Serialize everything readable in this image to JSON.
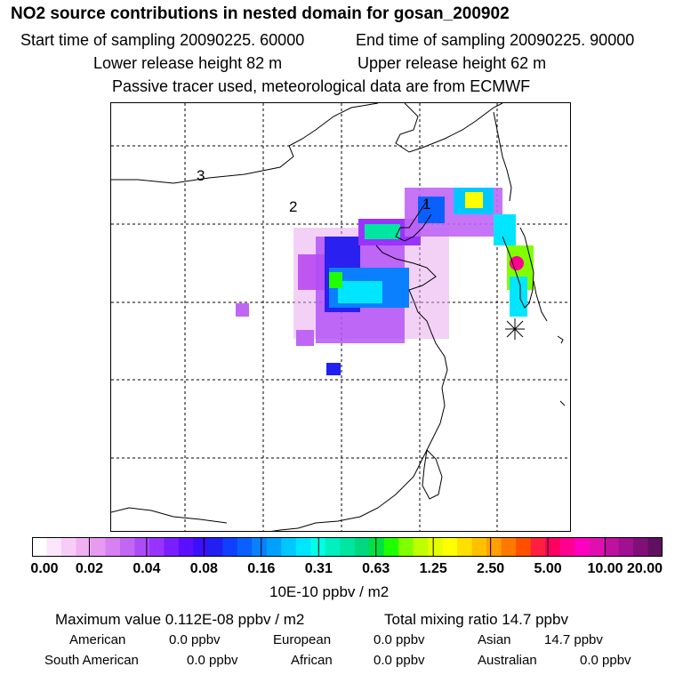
{
  "header": {
    "title": "NO2 source contributions in nested domain for gosan_200902",
    "start": "Start time of sampling 20090225. 60000",
    "end": "End time of sampling 20090225. 90000",
    "lower": "Lower release height   82 m",
    "upper": "Upper release height   62 m",
    "note": "Passive tracer used, meteorological data are from ECMWF"
  },
  "chart_data": {
    "type": "heatmap",
    "title": "NO2 source contributions in nested domain for gosan_200902",
    "colorbar": {
      "label": "10E-10 ppbv / m2",
      "ticks": [
        "0.00",
        "0.02",
        "0.04",
        "0.08",
        "0.16",
        "0.31",
        "0.63",
        "1.25",
        "2.50",
        "5.00",
        "10.00",
        "20.00"
      ],
      "colors": [
        "#ffffff",
        "#fbe6fb",
        "#f7ccf7",
        "#f0b0f2",
        "#e69af0",
        "#d780f2",
        "#c266f5",
        "#ac4cf7",
        "#9933ff",
        "#7a1fff",
        "#5a10ff",
        "#3a10ff",
        "#2020f2",
        "#1040ff",
        "#0a60ff",
        "#0a80ff",
        "#00a0ff",
        "#00c8ff",
        "#00e6ff",
        "#00ffe6",
        "#00f0c0",
        "#00e6a0",
        "#00d880",
        "#00e040",
        "#20ff00",
        "#80ff00",
        "#c0ff00",
        "#e6ff00",
        "#ffff00",
        "#ffe000",
        "#ffc000",
        "#ffa000",
        "#ff7800",
        "#ff5000",
        "#ff2040",
        "#ff0060",
        "#ff0090",
        "#ff00c0",
        "#e010b0",
        "#c010a0",
        "#a01090",
        "#801078",
        "#601060"
      ]
    },
    "region_labels": [
      "1",
      "2",
      "3"
    ],
    "receptor": "gosan (marked by star)",
    "grid": true
  },
  "stats": {
    "max": "Maximum value  0.112E-08 ppbv / m2",
    "total": "Total mixing ratio       14.7 ppbv",
    "american_label": "American",
    "american_val": "0.0 ppbv",
    "european_label": "European",
    "european_val": "0.0 ppbv",
    "asian_label": "Asian",
    "asian_val": "14.7 ppbv",
    "south_american_label": "South American",
    "south_american_val": "0.0 ppbv",
    "african_label": "African",
    "african_val": "0.0 ppbv",
    "australian_label": "Australian",
    "australian_val": "0.0 ppbv"
  }
}
